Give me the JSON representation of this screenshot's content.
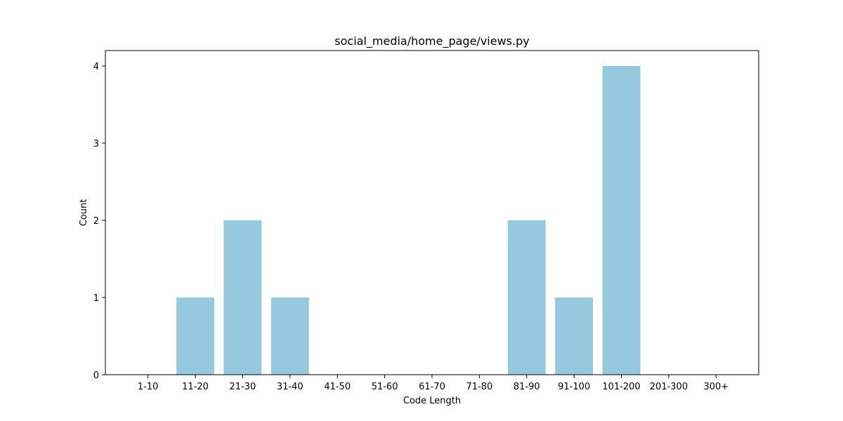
{
  "chart_data": {
    "type": "bar",
    "title": "social_media/home_page/views.py",
    "xlabel": "Code Length",
    "ylabel": "Count",
    "categories": [
      "1-10",
      "11-20",
      "21-30",
      "31-40",
      "41-50",
      "51-60",
      "61-70",
      "71-80",
      "81-90",
      "91-100",
      "101-200",
      "201-300",
      "300+"
    ],
    "values": [
      0,
      1,
      2,
      1,
      0,
      0,
      0,
      0,
      2,
      1,
      4,
      0,
      0
    ],
    "ylim": [
      0,
      4.2
    ],
    "yticks": [
      0,
      1,
      2,
      3,
      4
    ],
    "grid": false,
    "bar_color": "#96c9dd"
  }
}
